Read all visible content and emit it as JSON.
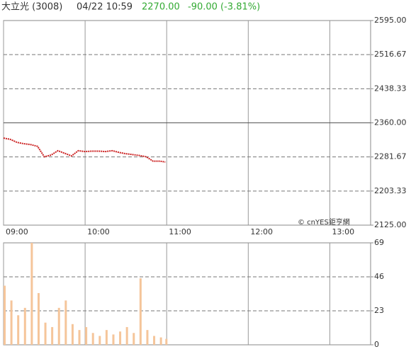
{
  "header": {
    "name": "大立光 (3008)",
    "time": "04/22 10:59",
    "price": "2270.00",
    "change": "-90.00 (-3.81%)",
    "watermark": "© cnYES鉅亨網"
  },
  "chart_data": [
    {
      "type": "line",
      "color": "#cc2222",
      "reference": 2360,
      "x": [
        "09:00",
        "09:05",
        "09:10",
        "09:15",
        "09:20",
        "09:25",
        "09:30",
        "09:35",
        "09:40",
        "09:45",
        "09:50",
        "09:55",
        "10:00",
        "10:05",
        "10:10",
        "10:15",
        "10:20",
        "10:25",
        "10:30",
        "10:35",
        "10:40",
        "10:45",
        "10:50",
        "10:55",
        "10:59"
      ],
      "values": [
        2325,
        2322,
        2315,
        2312,
        2310,
        2306,
        2282,
        2286,
        2296,
        2290,
        2284,
        2296,
        2294,
        2295,
        2295,
        2294,
        2296,
        2292,
        2289,
        2287,
        2285,
        2282,
        2272,
        2272,
        2270
      ],
      "xlim": [
        "09:00",
        "13:30"
      ],
      "xticks": [
        "09:00",
        "10:00",
        "11:00",
        "12:00",
        "13:00"
      ],
      "ylim": [
        2125,
        2595
      ],
      "yticks": [
        {
          "value": 2595,
          "label": "2595.00"
        },
        2516.67,
        2438.33,
        {
          "value": 2360,
          "label": "2360.00"
        },
        2281.67,
        2203.33,
        {
          "value": 2125,
          "label": "2125.00"
        }
      ],
      "grid": true
    },
    {
      "type": "bar",
      "color": "#f5c59a",
      "x": [
        "09:00",
        "09:05",
        "09:10",
        "09:15",
        "09:20",
        "09:25",
        "09:30",
        "09:35",
        "09:40",
        "09:45",
        "09:50",
        "09:55",
        "10:00",
        "10:05",
        "10:10",
        "10:15",
        "10:20",
        "10:25",
        "10:30",
        "10:35",
        "10:40",
        "10:45",
        "10:50",
        "10:55",
        "10:59"
      ],
      "values": [
        40,
        30,
        20,
        25,
        69,
        35,
        15,
        12,
        25,
        30,
        14,
        10,
        12,
        8,
        6,
        10,
        7,
        9,
        12,
        8,
        45,
        10,
        6,
        5,
        4
      ],
      "xlim": [
        "09:00",
        "13:30"
      ],
      "xticks": [
        "09:00",
        "10:00",
        "11:00",
        "12:00",
        "13:00"
      ],
      "ylim": [
        0,
        69
      ],
      "yticks": [
        0,
        23,
        46,
        69
      ],
      "grid": true
    }
  ]
}
